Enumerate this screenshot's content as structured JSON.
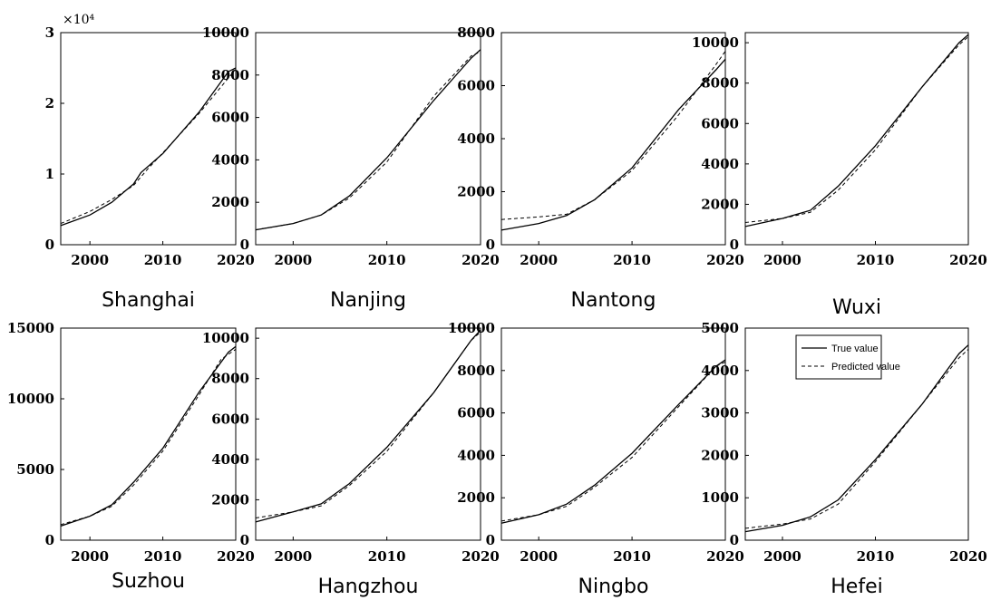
{
  "legend": {
    "true_label": "True value",
    "predicted_label": "Predicted value"
  },
  "chart_data": [
    {
      "type": "line",
      "title": "Shanghai",
      "xlim": [
        1996,
        2020
      ],
      "ylim": [
        0,
        30000
      ],
      "xticks": [
        "2000",
        "2010",
        "2020"
      ],
      "yticks": [
        "0",
        "1",
        "2",
        "3"
      ],
      "multiplier": "×10⁴",
      "series": [
        {
          "name": "True value",
          "x": [
            1996,
            2000,
            2003,
            2006,
            2007,
            2010,
            2015,
            2019,
            2020
          ],
          "y": [
            2700,
            4200,
            6000,
            8600,
            10200,
            12900,
            18800,
            24500,
            25000
          ]
        },
        {
          "name": "Predicted value",
          "x": [
            1996,
            2000,
            2003,
            2006,
            2008,
            2010,
            2015,
            2019,
            2020
          ],
          "y": [
            3000,
            4700,
            6400,
            8400,
            10800,
            13000,
            18600,
            23600,
            24800
          ]
        }
      ]
    },
    {
      "type": "line",
      "title": "Nanjing",
      "xlim": [
        1996,
        2020
      ],
      "ylim": [
        0,
        10000
      ],
      "xticks": [
        "2000",
        "2010",
        "2020"
      ],
      "yticks": [
        "0",
        "2000",
        "4000",
        "6000",
        "8000",
        "10000"
      ],
      "series": [
        {
          "name": "True value",
          "x": [
            1996,
            2000,
            2003,
            2006,
            2010,
            2015,
            2019,
            2020
          ],
          "y": [
            700,
            1000,
            1400,
            2300,
            4100,
            6800,
            8800,
            9200
          ]
        },
        {
          "name": "Predicted value",
          "x": [
            1996,
            2000,
            2003,
            2006,
            2010,
            2015,
            2019,
            2020
          ],
          "y": [
            700,
            1000,
            1400,
            2200,
            3900,
            7000,
            8900,
            9100
          ]
        }
      ]
    },
    {
      "type": "line",
      "title": "Nantong",
      "xlim": [
        1996,
        2020
      ],
      "ylim": [
        0,
        8000
      ],
      "xticks": [
        "2000",
        "2010",
        "2020"
      ],
      "yticks": [
        "0",
        "2000",
        "4000",
        "6000",
        "8000"
      ],
      "series": [
        {
          "name": "True value",
          "x": [
            1996,
            2000,
            2003,
            2006,
            2010,
            2015,
            2019,
            2020
          ],
          "y": [
            550,
            800,
            1100,
            1700,
            2900,
            5100,
            6600,
            7000
          ]
        },
        {
          "name": "Predicted value",
          "x": [
            1996,
            2000,
            2003,
            2006,
            2010,
            2015,
            2019,
            2020
          ],
          "y": [
            950,
            1050,
            1150,
            1700,
            2800,
            4900,
            6800,
            7300
          ]
        }
      ]
    },
    {
      "type": "line",
      "title": "Wuxi",
      "xlim": [
        1996,
        2020
      ],
      "ylim": [
        0,
        10500
      ],
      "xticks": [
        "2000",
        "2010",
        "2020"
      ],
      "yticks": [
        "0",
        "2000",
        "4000",
        "6000",
        "8000",
        "10000"
      ],
      "series": [
        {
          "name": "True value",
          "x": [
            1996,
            2000,
            2003,
            2006,
            2010,
            2015,
            2019,
            2020
          ],
          "y": [
            900,
            1300,
            1700,
            2900,
            4900,
            7800,
            10000,
            10400
          ]
        },
        {
          "name": "Predicted value",
          "x": [
            1996,
            2000,
            2003,
            2006,
            2010,
            2015,
            2019,
            2020
          ],
          "y": [
            1100,
            1300,
            1600,
            2700,
            4700,
            7800,
            9900,
            10300
          ]
        }
      ]
    },
    {
      "type": "line",
      "title": "Suzhou",
      "xlim": [
        1996,
        2020
      ],
      "ylim": [
        0,
        15000
      ],
      "xticks": [
        "2000",
        "2010",
        "2020"
      ],
      "yticks": [
        "0",
        "5000",
        "10000",
        "15000"
      ],
      "series": [
        {
          "name": "True value",
          "x": [
            1996,
            2000,
            2003,
            2006,
            2010,
            2015,
            2019,
            2020
          ],
          "y": [
            1000,
            1700,
            2500,
            4100,
            6500,
            10500,
            13300,
            13700
          ]
        },
        {
          "name": "Predicted value",
          "x": [
            1996,
            2000,
            2003,
            2006,
            2010,
            2015,
            2018,
            2020
          ],
          "y": [
            1100,
            1700,
            2400,
            3900,
            6300,
            10300,
            12800,
            13500
          ]
        }
      ]
    },
    {
      "type": "line",
      "title": "Hangzhou",
      "xlim": [
        1996,
        2020
      ],
      "ylim": [
        0,
        10500
      ],
      "xticks": [
        "2000",
        "2010",
        "2020"
      ],
      "yticks": [
        "0",
        "2000",
        "4000",
        "6000",
        "8000",
        "10000"
      ],
      "series": [
        {
          "name": "True value",
          "x": [
            1996,
            2000,
            2003,
            2006,
            2010,
            2015,
            2019,
            2020
          ],
          "y": [
            900,
            1400,
            1800,
            2800,
            4600,
            7300,
            9900,
            10400
          ]
        },
        {
          "name": "Predicted value",
          "x": [
            1996,
            2000,
            2003,
            2006,
            2010,
            2015,
            2019,
            2020
          ],
          "y": [
            1100,
            1400,
            1700,
            2700,
            4400,
            7300,
            9900,
            10300
          ]
        }
      ]
    },
    {
      "type": "line",
      "title": "Ningbo",
      "xlim": [
        1996,
        2020
      ],
      "ylim": [
        0,
        10000
      ],
      "xticks": [
        "2000",
        "2010",
        "2020"
      ],
      "yticks": [
        "0",
        "2000",
        "4000",
        "6000",
        "8000",
        "10000"
      ],
      "series": [
        {
          "name": "True value",
          "x": [
            1996,
            2000,
            2003,
            2006,
            2010,
            2015,
            2019,
            2020
          ],
          "y": [
            800,
            1200,
            1700,
            2600,
            4100,
            6400,
            8200,
            8500
          ]
        },
        {
          "name": "Predicted value",
          "x": [
            1996,
            2000,
            2003,
            2006,
            2010,
            2015,
            2019,
            2020
          ],
          "y": [
            900,
            1200,
            1600,
            2500,
            3900,
            6300,
            8200,
            8400
          ]
        }
      ]
    },
    {
      "type": "line",
      "title": "Hefei",
      "xlim": [
        1996,
        2020
      ],
      "ylim": [
        0,
        5000
      ],
      "xticks": [
        "2000",
        "2010",
        "2020"
      ],
      "yticks": [
        "0",
        "1000",
        "2000",
        "3000",
        "4000",
        "5000"
      ],
      "series": [
        {
          "name": "True value",
          "x": [
            1996,
            2000,
            2003,
            2006,
            2010,
            2015,
            2019,
            2020
          ],
          "y": [
            200,
            350,
            550,
            950,
            1900,
            3200,
            4400,
            4600
          ]
        },
        {
          "name": "Predicted value",
          "x": [
            1996,
            2000,
            2003,
            2006,
            2010,
            2015,
            2019,
            2020
          ],
          "y": [
            280,
            380,
            500,
            850,
            1850,
            3200,
            4300,
            4500
          ]
        }
      ]
    }
  ]
}
